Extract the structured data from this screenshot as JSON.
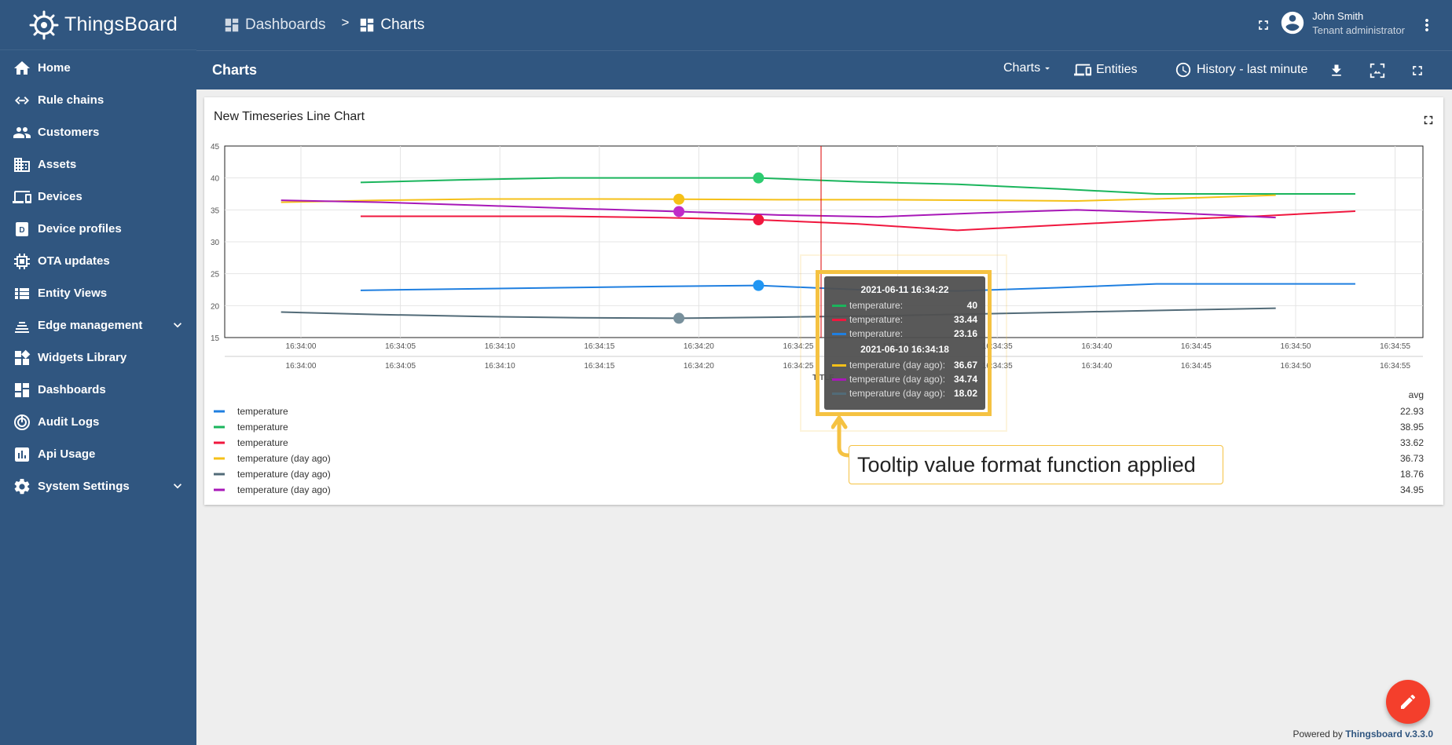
{
  "brand": {
    "name": "ThingsBoard"
  },
  "sidebar": {
    "items": [
      {
        "label": "Home",
        "icon": "home-icon"
      },
      {
        "label": "Rule chains",
        "icon": "rule-chain-icon"
      },
      {
        "label": "Customers",
        "icon": "customers-icon"
      },
      {
        "label": "Assets",
        "icon": "assets-icon"
      },
      {
        "label": "Devices",
        "icon": "devices-icon"
      },
      {
        "label": "Device profiles",
        "icon": "device-profile-icon"
      },
      {
        "label": "OTA updates",
        "icon": "ota-icon"
      },
      {
        "label": "Entity Views",
        "icon": "entity-views-icon"
      },
      {
        "label": "Edge management",
        "icon": "edge-icon",
        "expandable": true
      },
      {
        "label": "Widgets Library",
        "icon": "widgets-icon"
      },
      {
        "label": "Dashboards",
        "icon": "dashboards-icon"
      },
      {
        "label": "Audit Logs",
        "icon": "audit-icon"
      },
      {
        "label": "Api Usage",
        "icon": "api-usage-icon"
      },
      {
        "label": "System Settings",
        "icon": "settings-icon",
        "expandable": true
      }
    ]
  },
  "breadcrumb": {
    "first": "Dashboards",
    "separator": ">",
    "second": "Charts"
  },
  "user": {
    "name": "John Smith",
    "role": "Tenant administrator"
  },
  "dashboard": {
    "title": "Charts",
    "states_label": "Charts",
    "entities_label": "Entities",
    "timewindow_label": "History - last minute"
  },
  "widget": {
    "title": "New Timeseries Line Chart"
  },
  "chart_data": {
    "type": "line",
    "title": "New Timeseries Line Chart",
    "xlabel": "TITLE",
    "ylim": [
      15,
      45
    ],
    "y_ticks": [
      "15",
      "20",
      "25",
      "30",
      "35",
      "40",
      "45"
    ],
    "x_ticks": [
      "16:34:00",
      "16:34:05",
      "16:34:10",
      "16:34:15",
      "16:34:20",
      "16:34:25",
      "16:34:30",
      "16:34:35",
      "16:34:40",
      "16:34:45",
      "16:34:50",
      "16:34:55"
    ],
    "grid": true,
    "legend_position": "bottom",
    "legend_value_header": "avg",
    "series": [
      {
        "name": "temperature",
        "color": "#1f7fe0",
        "avg": "22.93",
        "x": [
          "16:34:03",
          "16:34:08",
          "16:34:13",
          "16:34:18",
          "16:34:23",
          "16:34:28",
          "16:34:33",
          "16:34:38",
          "16:34:43",
          "16:34:48",
          "16:34:53"
        ],
        "y": [
          22.4,
          22.6,
          22.8,
          23.0,
          23.16,
          22.5,
          22.3,
          22.8,
          23.4,
          23.4,
          23.4
        ]
      },
      {
        "name": "temperature",
        "color": "#1ab55c",
        "avg": "38.95",
        "x": [
          "16:34:03",
          "16:34:08",
          "16:34:13",
          "16:34:18",
          "16:34:23",
          "16:34:28",
          "16:34:33",
          "16:34:38",
          "16:34:43",
          "16:34:48",
          "16:34:53"
        ],
        "y": [
          39.3,
          39.7,
          40.0,
          40.0,
          40.0,
          39.4,
          39.0,
          38.3,
          37.5,
          37.5,
          37.5
        ]
      },
      {
        "name": "temperature",
        "color": "#f0173e",
        "avg": "33.62",
        "x": [
          "16:34:03",
          "16:34:08",
          "16:34:13",
          "16:34:18",
          "16:34:23",
          "16:34:28",
          "16:34:33",
          "16:34:38",
          "16:34:43",
          "16:34:48",
          "16:34:53"
        ],
        "y": [
          34.0,
          34.0,
          34.0,
          33.8,
          33.44,
          32.8,
          31.8,
          32.6,
          33.4,
          34.0,
          34.8
        ]
      },
      {
        "name": "temperature (day ago)",
        "color": "#f5c018",
        "avg": "36.73",
        "x": [
          "16:33:59",
          "16:34:04",
          "16:34:09",
          "16:34:14",
          "16:34:19",
          "16:34:24",
          "16:34:29",
          "16:34:34",
          "16:34:39",
          "16:34:44",
          "16:34:49"
        ],
        "y": [
          36.2,
          36.5,
          36.7,
          36.7,
          36.67,
          36.6,
          36.6,
          36.5,
          36.4,
          36.8,
          37.3
        ]
      },
      {
        "name": "temperature (day ago)",
        "color": "#526b78",
        "avg": "18.76",
        "x": [
          "16:33:59",
          "16:34:04",
          "16:34:09",
          "16:34:14",
          "16:34:19",
          "16:34:24",
          "16:34:29",
          "16:34:34",
          "16:34:39",
          "16:34:44",
          "16:34:49"
        ],
        "y": [
          19.0,
          18.6,
          18.3,
          18.1,
          18.02,
          18.2,
          18.4,
          18.7,
          19.0,
          19.3,
          19.6
        ]
      },
      {
        "name": "temperature (day ago)",
        "color": "#a818b8",
        "avg": "34.95",
        "x": [
          "16:33:59",
          "16:34:04",
          "16:34:09",
          "16:34:14",
          "16:34:19",
          "16:34:24",
          "16:34:29",
          "16:34:34",
          "16:34:39",
          "16:34:44",
          "16:34:49"
        ],
        "y": [
          36.5,
          36.2,
          35.7,
          35.2,
          34.74,
          34.2,
          33.9,
          34.5,
          35.0,
          34.5,
          33.8
        ]
      }
    ]
  },
  "tooltip": {
    "groups": [
      {
        "timestamp": "2021-06-11 16:34:22",
        "rows": [
          {
            "label": "temperature:",
            "value": "40",
            "color": "#1ab55c"
          },
          {
            "label": "temperature:",
            "value": "33.44",
            "color": "#f0173e"
          },
          {
            "label": "temperature:",
            "value": "23.16",
            "color": "#1f7fe0"
          }
        ]
      },
      {
        "timestamp": "2021-06-10 16:34:18",
        "rows": [
          {
            "label": "temperature (day ago):",
            "value": "36.67",
            "color": "#f5c018"
          },
          {
            "label": "temperature (day ago):",
            "value": "34.74",
            "color": "#a818b8"
          },
          {
            "label": "temperature (day ago):",
            "value": "18.02",
            "color": "#526b78"
          }
        ]
      }
    ]
  },
  "callout": {
    "text": "Tooltip value format function applied"
  },
  "footer": {
    "prefix": "Powered by",
    "link": "Thingsboard v.3.3.0"
  },
  "colors": {
    "primary": "#305680",
    "accent": "#f43f2c",
    "highlight": "#f5c242"
  }
}
